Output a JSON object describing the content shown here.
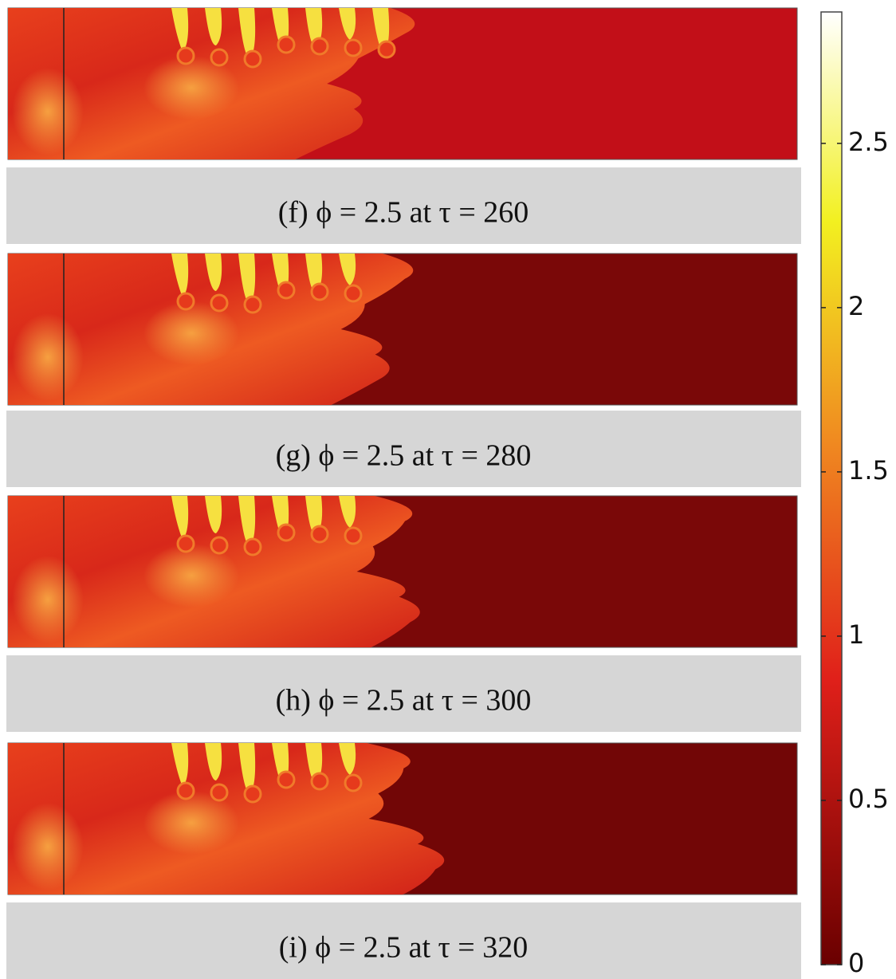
{
  "panels": [
    {
      "caption": "(f) ϕ = 2.5 at τ = 260"
    },
    {
      "caption": "(g) ϕ = 2.5 at τ = 280"
    },
    {
      "caption": "(h) ϕ = 2.5 at τ = 300"
    },
    {
      "caption": "(i) ϕ = 2.5 at τ = 320"
    }
  ],
  "colorbar": {
    "range": [
      0,
      2.9
    ],
    "ticks": [
      0,
      0.5,
      1,
      1.5,
      2,
      2.5
    ]
  }
}
